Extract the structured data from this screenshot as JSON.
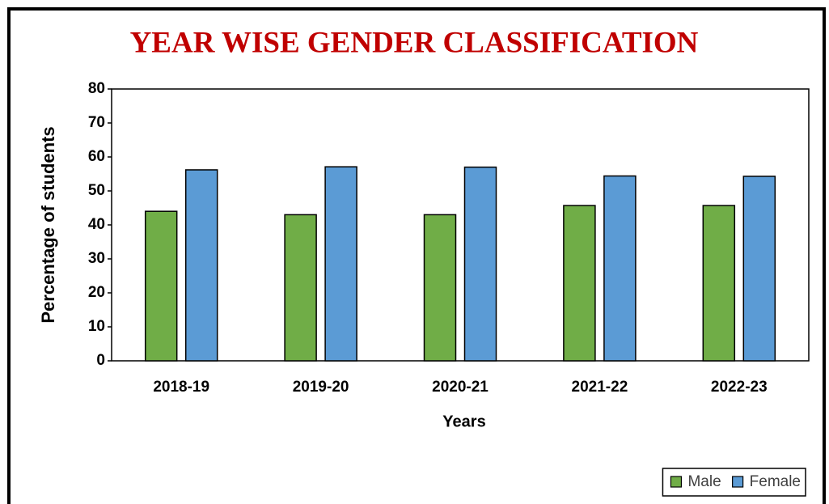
{
  "chart_data": {
    "type": "bar",
    "title": "YEAR WISE GENDER CLASSIFICATION",
    "x_label": "Years",
    "y_label": "Percentage of students",
    "categories": [
      "2018-19",
      "2019-20",
      "2020-21",
      "2021-22",
      "2022-23"
    ],
    "series": [
      {
        "name": "Male",
        "color": "#70ad47",
        "values": [
          44.0,
          43.0,
          43.0,
          45.7,
          45.7
        ]
      },
      {
        "name": "Female",
        "color": "#5b9bd5",
        "values": [
          56.2,
          57.1,
          57.0,
          54.4,
          54.3
        ]
      }
    ],
    "ylim": [
      0,
      80
    ],
    "yticks": [
      0,
      10,
      20,
      30,
      40,
      50,
      60,
      70,
      80
    ],
    "legend": "bottom-right"
  }
}
